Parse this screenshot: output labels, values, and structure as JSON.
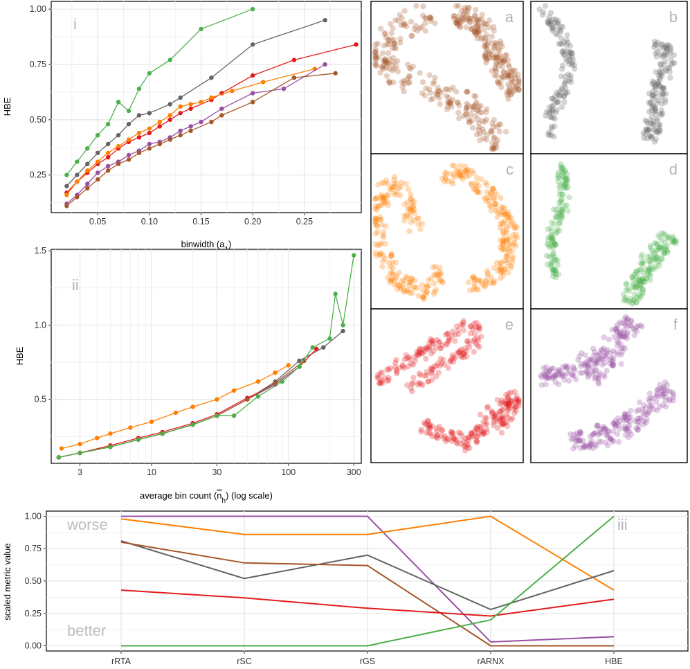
{
  "colors": {
    "green": "#4daf4a",
    "grey": "#636363",
    "red": "#e41a1c",
    "orange": "#ff7f00",
    "purple": "#984ea3",
    "brown": "#a65628"
  },
  "chart_data": [
    {
      "id": "panel-i",
      "type": "line",
      "panel_label": "i",
      "xlabel": "binwidth (a",
      "xlabel_sub": "1",
      "xlabel_end": ")",
      "ylabel": "HBE",
      "xlim": [
        0.005,
        0.305
      ],
      "ylim": [
        0.08,
        1.035
      ],
      "xticks": [
        0.05,
        0.1,
        0.15,
        0.2,
        0.25
      ],
      "xtick_labels": [
        "0.05",
        "0.10",
        "0.15",
        "0.20",
        "0.25"
      ],
      "yticks": [
        0.25,
        0.5,
        0.75,
        1.0
      ],
      "ytick_labels": [
        "0.25",
        "0.50",
        "0.75",
        "1.00"
      ],
      "grid": true,
      "series": [
        {
          "color": "green",
          "x": [
            0.02,
            0.03,
            0.04,
            0.05,
            0.06,
            0.07,
            0.08,
            0.09,
            0.1,
            0.12,
            0.15,
            0.2
          ],
          "y": [
            0.25,
            0.31,
            0.37,
            0.43,
            0.48,
            0.58,
            0.54,
            0.64,
            0.71,
            0.77,
            0.91,
            1.0
          ]
        },
        {
          "color": "grey",
          "x": [
            0.02,
            0.03,
            0.04,
            0.05,
            0.06,
            0.07,
            0.08,
            0.09,
            0.1,
            0.12,
            0.13,
            0.16,
            0.2,
            0.27
          ],
          "y": [
            0.2,
            0.25,
            0.3,
            0.35,
            0.39,
            0.43,
            0.48,
            0.52,
            0.53,
            0.57,
            0.6,
            0.69,
            0.84,
            0.95
          ]
        },
        {
          "color": "red",
          "x": [
            0.02,
            0.03,
            0.04,
            0.05,
            0.06,
            0.07,
            0.08,
            0.09,
            0.1,
            0.11,
            0.12,
            0.13,
            0.14,
            0.16,
            0.17,
            0.2,
            0.24,
            0.3
          ],
          "y": [
            0.17,
            0.22,
            0.26,
            0.3,
            0.33,
            0.37,
            0.4,
            0.42,
            0.44,
            0.47,
            0.5,
            0.53,
            0.55,
            0.59,
            0.62,
            0.7,
            0.77,
            0.84
          ]
        },
        {
          "color": "orange",
          "x": [
            0.02,
            0.03,
            0.04,
            0.05,
            0.06,
            0.07,
            0.08,
            0.09,
            0.1,
            0.11,
            0.12,
            0.13,
            0.14,
            0.15,
            0.16,
            0.18,
            0.21,
            0.26
          ],
          "y": [
            0.16,
            0.22,
            0.27,
            0.31,
            0.35,
            0.38,
            0.41,
            0.44,
            0.46,
            0.49,
            0.52,
            0.56,
            0.57,
            0.58,
            0.6,
            0.63,
            0.67,
            0.73
          ]
        },
        {
          "color": "purple",
          "x": [
            0.02,
            0.03,
            0.04,
            0.05,
            0.06,
            0.07,
            0.08,
            0.09,
            0.1,
            0.11,
            0.12,
            0.13,
            0.14,
            0.15,
            0.17,
            0.2,
            0.23,
            0.27
          ],
          "y": [
            0.12,
            0.16,
            0.21,
            0.26,
            0.29,
            0.31,
            0.34,
            0.36,
            0.39,
            0.4,
            0.42,
            0.45,
            0.47,
            0.49,
            0.55,
            0.62,
            0.64,
            0.75
          ]
        },
        {
          "color": "brown",
          "x": [
            0.02,
            0.03,
            0.04,
            0.05,
            0.06,
            0.07,
            0.08,
            0.09,
            0.1,
            0.11,
            0.12,
            0.13,
            0.14,
            0.16,
            0.17,
            0.2,
            0.24,
            0.28
          ],
          "y": [
            0.11,
            0.15,
            0.19,
            0.23,
            0.27,
            0.3,
            0.32,
            0.35,
            0.37,
            0.39,
            0.41,
            0.43,
            0.45,
            0.49,
            0.52,
            0.58,
            0.69,
            0.71
          ]
        }
      ]
    },
    {
      "id": "panel-ii",
      "type": "line",
      "panel_label": "ii",
      "xlabel": "average bin count (",
      "xlabel_sym": "n",
      "xlabel_sub": "h",
      "xlabel_end": ") (log scale)",
      "ylabel": "HBE",
      "xscale": "log",
      "xlim": [
        1.85,
        340
      ],
      "ylim": [
        0.07,
        1.51
      ],
      "xticks": [
        3,
        10,
        30,
        100,
        300
      ],
      "xtick_labels": [
        "3",
        "10",
        "30",
        "100",
        "300"
      ],
      "yticks": [
        0.5,
        1.0,
        1.5
      ],
      "ytick_labels": [
        "0.5",
        "1.0",
        "1.5"
      ],
      "grid": true,
      "series": [
        {
          "color": "orange",
          "x": [
            2.2,
            3,
            4,
            5,
            7,
            10,
            15,
            20,
            30,
            40,
            60,
            80,
            100
          ],
          "y": [
            0.17,
            0.2,
            0.24,
            0.27,
            0.31,
            0.35,
            0.41,
            0.45,
            0.5,
            0.56,
            0.62,
            0.68,
            0.73
          ]
        },
        {
          "color": "grey",
          "x": [
            2.1,
            3,
            5,
            8,
            12,
            20,
            30,
            50,
            80,
            120,
            180,
            250
          ],
          "y": [
            0.11,
            0.14,
            0.18,
            0.23,
            0.27,
            0.33,
            0.39,
            0.5,
            0.62,
            0.76,
            0.85,
            0.96
          ]
        },
        {
          "color": "red",
          "x": [
            2.1,
            3,
            5,
            8,
            12,
            20,
            30,
            50,
            80,
            120,
            160
          ],
          "y": [
            0.11,
            0.14,
            0.19,
            0.24,
            0.28,
            0.34,
            0.4,
            0.51,
            0.6,
            0.72,
            0.84
          ]
        },
        {
          "color": "purple",
          "x": [
            2.1,
            3,
            5,
            8,
            12,
            20,
            30,
            50,
            80,
            120
          ],
          "y": [
            0.11,
            0.14,
            0.18,
            0.23,
            0.27,
            0.33,
            0.39,
            0.5,
            0.6,
            0.72
          ]
        },
        {
          "color": "brown",
          "x": [
            2.1,
            3,
            5,
            8,
            12,
            20,
            30,
            50,
            80,
            130
          ],
          "y": [
            0.11,
            0.14,
            0.18,
            0.23,
            0.27,
            0.33,
            0.39,
            0.5,
            0.61,
            0.76
          ]
        },
        {
          "color": "green",
          "x": [
            2.1,
            3,
            5,
            8,
            12,
            20,
            30,
            40,
            60,
            90,
            120,
            150,
            200,
            220,
            250,
            300
          ],
          "y": [
            0.11,
            0.14,
            0.18,
            0.23,
            0.27,
            0.33,
            0.39,
            0.39,
            0.52,
            0.62,
            0.72,
            0.85,
            0.91,
            1.21,
            1.0,
            1.47
          ]
        }
      ]
    },
    {
      "id": "panel-iii",
      "type": "line",
      "panel_label": "iii",
      "ylabel": "scaled metric value",
      "categories": [
        "rRTA",
        "rSC",
        "rGS",
        "rARNX",
        "HBE"
      ],
      "yticks": [
        0.0,
        0.25,
        0.5,
        0.75,
        1.0
      ],
      "ytick_labels": [
        "0.00",
        "0.25",
        "0.50",
        "0.75",
        "1.00"
      ],
      "ylim": [
        -0.04,
        1.04
      ],
      "grid": true,
      "annotations": {
        "top": "worse",
        "bottom": "better"
      },
      "series": [
        {
          "color": "purple",
          "values": [
            1.0,
            1.0,
            1.0,
            0.03,
            0.07
          ]
        },
        {
          "color": "orange",
          "values": [
            0.98,
            0.86,
            0.86,
            1.0,
            0.43
          ]
        },
        {
          "color": "grey",
          "values": [
            0.81,
            0.52,
            0.7,
            0.28,
            0.58
          ]
        },
        {
          "color": "brown",
          "values": [
            0.8,
            0.64,
            0.62,
            0.0,
            0.0
          ]
        },
        {
          "color": "red",
          "values": [
            0.43,
            0.37,
            0.29,
            0.23,
            0.36
          ]
        },
        {
          "color": "green",
          "values": [
            0.0,
            0.0,
            0.0,
            0.2,
            1.0
          ]
        }
      ]
    }
  ],
  "scatter_panels": [
    {
      "label": "a",
      "color": "brown",
      "clusters": [
        {
          "path": [
            [
              0.38,
              0.07
            ],
            [
              0.1,
              0.24
            ],
            [
              0.06,
              0.44
            ],
            [
              0.3,
              0.52
            ],
            [
              0.62,
              0.68
            ],
            [
              0.85,
              0.94
            ]
          ],
          "width": 0.18,
          "points": 230
        },
        {
          "path": [
            [
              0.55,
              0.1
            ],
            [
              0.72,
              0.14
            ],
            [
              0.82,
              0.38
            ],
            [
              0.97,
              0.62
            ]
          ],
          "width": 0.15,
          "points": 190
        }
      ]
    },
    {
      "label": "b",
      "color": "grey",
      "clusters": [
        {
          "path": [
            [
              0.07,
              0.04
            ],
            [
              0.2,
              0.22
            ],
            [
              0.25,
              0.38
            ],
            [
              0.22,
              0.55
            ],
            [
              0.14,
              0.72
            ],
            [
              0.12,
              0.88
            ]
          ],
          "width": 0.07,
          "points": 120
        },
        {
          "path": [
            [
              0.78,
              0.3
            ],
            [
              0.9,
              0.34
            ],
            [
              0.82,
              0.52
            ],
            [
              0.8,
              0.72
            ],
            [
              0.76,
              0.93
            ]
          ],
          "width": 0.1,
          "points": 140
        }
      ]
    },
    {
      "label": "c",
      "color": "orange",
      "clusters": [
        {
          "path": [
            [
              0.3,
              0.5
            ],
            [
              0.18,
              0.18
            ],
            [
              0.06,
              0.26
            ],
            [
              0.06,
              0.62
            ],
            [
              0.18,
              0.82
            ],
            [
              0.38,
              0.9
            ],
            [
              0.46,
              0.74
            ]
          ],
          "width": 0.1,
          "points": 190
        },
        {
          "path": [
            [
              0.48,
              0.18
            ],
            [
              0.58,
              0.08
            ],
            [
              0.8,
              0.28
            ],
            [
              0.92,
              0.5
            ],
            [
              0.86,
              0.76
            ],
            [
              0.64,
              0.86
            ]
          ],
          "width": 0.1,
          "points": 190
        }
      ]
    },
    {
      "label": "d",
      "color": "green",
      "clusters": [
        {
          "path": [
            [
              0.2,
              0.06
            ],
            [
              0.22,
              0.3
            ],
            [
              0.12,
              0.54
            ],
            [
              0.16,
              0.8
            ]
          ],
          "width": 0.07,
          "points": 120
        },
        {
          "path": [
            [
              0.9,
              0.52
            ],
            [
              0.74,
              0.72
            ],
            [
              0.66,
              0.88
            ],
            [
              0.62,
              0.96
            ]
          ],
          "width": 0.11,
          "points": 140
        }
      ]
    },
    {
      "label": "e",
      "color": "red",
      "clusters": [
        {
          "path": [
            [
              0.05,
              0.48
            ],
            [
              0.2,
              0.36
            ],
            [
              0.48,
              0.2
            ],
            [
              0.66,
              0.1
            ],
            [
              0.72,
              0.2
            ],
            [
              0.46,
              0.38
            ],
            [
              0.25,
              0.52
            ]
          ],
          "width": 0.08,
          "points": 170
        },
        {
          "path": [
            [
              0.34,
              0.76
            ],
            [
              0.56,
              0.84
            ],
            [
              0.64,
              0.9
            ],
            [
              0.78,
              0.68
            ],
            [
              0.96,
              0.56
            ],
            [
              0.82,
              0.78
            ]
          ],
          "width": 0.09,
          "points": 170
        }
      ]
    },
    {
      "label": "f",
      "color": "purple",
      "clusters": [
        {
          "path": [
            [
              0.06,
              0.44
            ],
            [
              0.25,
              0.42
            ],
            [
              0.5,
              0.24
            ],
            [
              0.65,
              0.08
            ],
            [
              0.56,
              0.28
            ],
            [
              0.38,
              0.46
            ]
          ],
          "width": 0.12,
          "points": 190
        },
        {
          "path": [
            [
              0.26,
              0.86
            ],
            [
              0.56,
              0.8
            ],
            [
              0.8,
              0.6
            ],
            [
              0.9,
              0.52
            ]
          ],
          "width": 0.13,
          "points": 170
        }
      ]
    }
  ]
}
